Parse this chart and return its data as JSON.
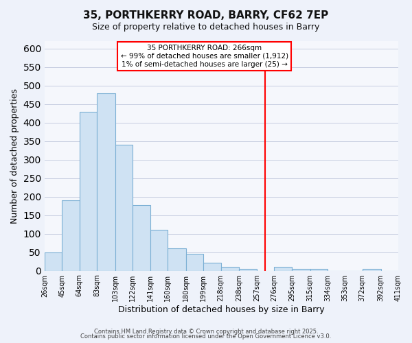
{
  "title": "35, PORTHKERRY ROAD, BARRY, CF62 7EP",
  "subtitle": "Size of property relative to detached houses in Barry",
  "xlabel": "Distribution of detached houses by size in Barry",
  "ylabel": "Number of detached properties",
  "bin_labels": [
    "26sqm",
    "45sqm",
    "64sqm",
    "83sqm",
    "103sqm",
    "122sqm",
    "141sqm",
    "160sqm",
    "180sqm",
    "199sqm",
    "218sqm",
    "238sqm",
    "257sqm",
    "276sqm",
    "295sqm",
    "315sqm",
    "334sqm",
    "353sqm",
    "372sqm",
    "392sqm",
    "411sqm"
  ],
  "bar_values": [
    50,
    190,
    430,
    480,
    340,
    178,
    110,
    60,
    45,
    22,
    10,
    5,
    0,
    10,
    5,
    5,
    0,
    0,
    5,
    0
  ],
  "bin_edges": [
    26,
    45,
    64,
    83,
    103,
    122,
    141,
    160,
    180,
    199,
    218,
    238,
    257,
    276,
    295,
    315,
    334,
    353,
    372,
    392,
    411
  ],
  "bar_color": "#cfe2f3",
  "bar_edge_color": "#7bafd4",
  "vline_x": 266,
  "vline_color": "red",
  "annotation_title": "35 PORTHKERRY ROAD: 266sqm",
  "annotation_line1": "← 99% of detached houses are smaller (1,912)",
  "annotation_line2": "1% of semi-detached houses are larger (25) →",
  "annotation_box_facecolor": "white",
  "annotation_box_edgecolor": "red",
  "ylim": [
    0,
    620
  ],
  "yticks": [
    0,
    50,
    100,
    150,
    200,
    250,
    300,
    350,
    400,
    450,
    500,
    550,
    600
  ],
  "footer1": "Contains HM Land Registry data © Crown copyright and database right 2025.",
  "footer2": "Contains public sector information licensed under the Open Government Licence v3.0.",
  "bg_color": "#eef2fa",
  "plot_bg_color": "#f5f7fc",
  "grid_color": "#c5cce0",
  "title_fontsize": 11,
  "subtitle_fontsize": 9,
  "xlabel_fontsize": 9,
  "ylabel_fontsize": 9,
  "tick_fontsize": 7,
  "footer_fontsize": 6
}
